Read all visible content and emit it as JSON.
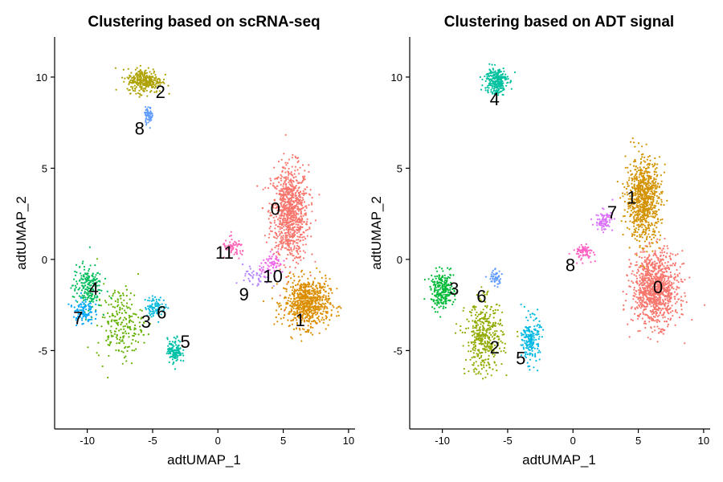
{
  "chart_data": [
    {
      "type": "scatter",
      "title": "Clustering based on scRNA-seq",
      "xlabel": "adtUMAP_1",
      "ylabel": "adtUMAP_2",
      "xlim": [
        -12.5,
        10.5
      ],
      "ylim": [
        -9.3,
        12.2
      ],
      "xticks": [
        -10,
        -5,
        0,
        5,
        10
      ],
      "yticks": [
        -5,
        0,
        5,
        10
      ],
      "xtick_labels": [
        "-10",
        "-5",
        "0",
        "5",
        "10"
      ],
      "ytick_labels": [
        "-5",
        "0",
        "5",
        "10"
      ],
      "grid": false,
      "legend": "none",
      "clusters": [
        {
          "label": "0",
          "color": "#F8766D",
          "center": [
            5.5,
            2.5
          ],
          "spread": [
            1.3,
            2.4
          ],
          "n": 900,
          "label_pos": [
            4.4,
            2.8
          ]
        },
        {
          "label": "1",
          "color": "#DB8E00",
          "center": [
            6.8,
            -2.4
          ],
          "spread": [
            1.6,
            1.2
          ],
          "n": 700,
          "label_pos": [
            6.3,
            -3.3
          ]
        },
        {
          "label": "2",
          "color": "#AEA200",
          "center": [
            -5.6,
            9.8
          ],
          "spread": [
            1.2,
            0.6
          ],
          "n": 300,
          "label_pos": [
            -4.4,
            9.2
          ]
        },
        {
          "label": "3",
          "color": "#64B200",
          "center": [
            -7.5,
            -3.5
          ],
          "spread": [
            1.6,
            1.8
          ],
          "n": 220,
          "label_pos": [
            -5.5,
            -3.4
          ]
        },
        {
          "label": "4",
          "color": "#00BD5C",
          "center": [
            -10.0,
            -1.5
          ],
          "spread": [
            1.0,
            1.1
          ],
          "n": 200,
          "label_pos": [
            -9.5,
            -1.6
          ]
        },
        {
          "label": "5",
          "color": "#00C1A7",
          "center": [
            -3.3,
            -5.0
          ],
          "spread": [
            0.5,
            0.6
          ],
          "n": 140,
          "label_pos": [
            -2.5,
            -4.5
          ]
        },
        {
          "label": "6",
          "color": "#00BADE",
          "center": [
            -4.8,
            -2.6
          ],
          "spread": [
            0.7,
            0.5
          ],
          "n": 90,
          "label_pos": [
            -4.3,
            -2.9
          ]
        },
        {
          "label": "7",
          "color": "#00A6FF",
          "center": [
            -10.3,
            -2.8
          ],
          "spread": [
            0.7,
            0.7
          ],
          "n": 100,
          "label_pos": [
            -10.7,
            -3.2
          ]
        },
        {
          "label": "8",
          "color": "#619CFF",
          "center": [
            -5.3,
            7.9
          ],
          "spread": [
            0.3,
            0.4
          ],
          "n": 60,
          "label_pos": [
            -6.0,
            7.2
          ]
        },
        {
          "label": "9",
          "color": "#B385FF",
          "center": [
            3.0,
            -1.0
          ],
          "spread": [
            1.0,
            0.6
          ],
          "n": 50,
          "label_pos": [
            2.0,
            -1.9
          ]
        },
        {
          "label": "10",
          "color": "#EF67EB",
          "center": [
            4.2,
            -0.3
          ],
          "spread": [
            0.9,
            0.5
          ],
          "n": 70,
          "label_pos": [
            4.2,
            -0.9
          ]
        },
        {
          "label": "11",
          "color": "#FF63B6",
          "center": [
            1.2,
            0.6
          ],
          "spread": [
            0.8,
            0.5
          ],
          "n": 60,
          "label_pos": [
            0.5,
            0.4
          ]
        }
      ]
    },
    {
      "type": "scatter",
      "title": "Clustering based on ADT signal",
      "xlabel": "adtUMAP_1",
      "ylabel": "adtUMAP_2",
      "xlim": [
        -12.5,
        10.5
      ],
      "ylim": [
        -9.3,
        12.2
      ],
      "xticks": [
        -10,
        -5,
        0,
        5,
        10
      ],
      "yticks": [
        -5,
        0,
        5,
        10
      ],
      "xtick_labels": [
        "-10",
        "-5",
        "0",
        "5",
        "10"
      ],
      "ytick_labels": [
        "-5",
        "0",
        "5",
        "10"
      ],
      "grid": false,
      "legend": "none",
      "clusters": [
        {
          "label": "0",
          "color": "#F8766D",
          "center": [
            6.3,
            -1.6
          ],
          "spread": [
            1.6,
            1.8
          ],
          "n": 1000,
          "label_pos": [
            6.5,
            -1.5
          ]
        },
        {
          "label": "1",
          "color": "#D39200",
          "center": [
            5.4,
            3.3
          ],
          "spread": [
            1.2,
            2.0
          ],
          "n": 800,
          "label_pos": [
            4.5,
            3.4
          ]
        },
        {
          "label": "2",
          "color": "#93AA00",
          "center": [
            -6.8,
            -4.3
          ],
          "spread": [
            1.3,
            1.8
          ],
          "n": 400,
          "label_pos": [
            -6.0,
            -4.8
          ]
        },
        {
          "label": "3",
          "color": "#00BA38",
          "center": [
            -10.0,
            -1.7
          ],
          "spread": [
            0.8,
            0.9
          ],
          "n": 250,
          "label_pos": [
            -9.1,
            -1.6
          ]
        },
        {
          "label": "4",
          "color": "#00C19F",
          "center": [
            -5.9,
            9.8
          ],
          "spread": [
            0.8,
            0.7
          ],
          "n": 250,
          "label_pos": [
            -6.0,
            8.8
          ]
        },
        {
          "label": "5",
          "color": "#00B9E3",
          "center": [
            -3.2,
            -4.4
          ],
          "spread": [
            0.6,
            1.1
          ],
          "n": 200,
          "label_pos": [
            -4.0,
            -5.4
          ]
        },
        {
          "label": "6",
          "color": "#619CFF",
          "center": [
            -6.0,
            -1.0
          ],
          "spread": [
            0.5,
            0.4
          ],
          "n": 50,
          "label_pos": [
            -7.0,
            -2.0
          ]
        },
        {
          "label": "7",
          "color": "#DB72FB",
          "center": [
            2.4,
            2.1
          ],
          "spread": [
            0.6,
            0.5
          ],
          "n": 90,
          "label_pos": [
            3.0,
            2.6
          ]
        },
        {
          "label": "8",
          "color": "#FF61C3",
          "center": [
            0.8,
            0.4
          ],
          "spread": [
            0.7,
            0.4
          ],
          "n": 70,
          "label_pos": [
            -0.2,
            -0.3
          ]
        }
      ]
    }
  ]
}
